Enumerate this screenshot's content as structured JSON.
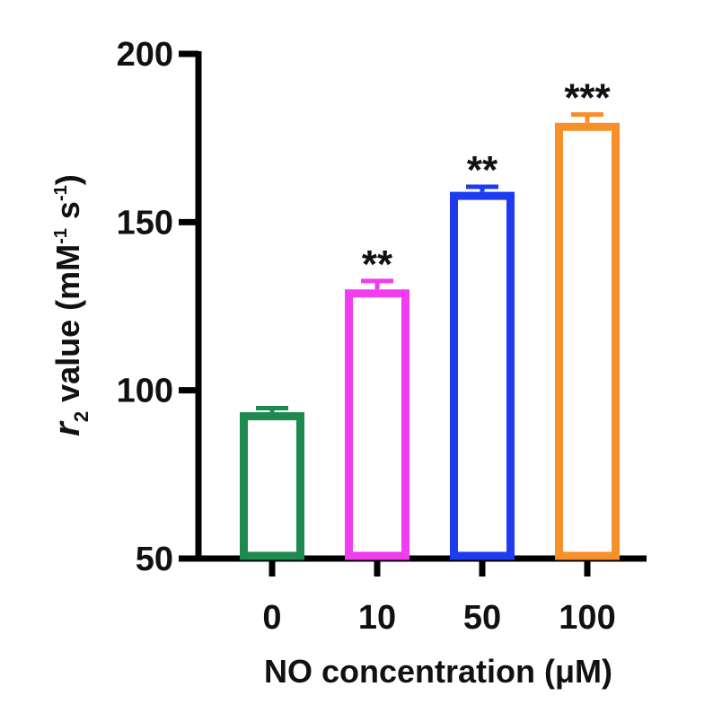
{
  "chart_data": {
    "type": "bar",
    "categories": [
      "0",
      "10",
      "50",
      "100"
    ],
    "values": [
      93.5,
      130,
      159,
      179.5
    ],
    "errors": [
      1.2,
      2.5,
      1.5,
      2.5
    ],
    "significance": [
      "",
      "**",
      "**",
      "***"
    ],
    "colors": [
      "#1f8a50",
      "#f23cf0",
      "#1d3cf0",
      "#f7902a"
    ],
    "xlabel": "NO concentration (μM)",
    "ylabel": {
      "symbol": "r",
      "symbol_sub": "2",
      "text": " value (mM",
      "sup1": "-1",
      "mid": " s",
      "sup2": "-1",
      "end": ")"
    },
    "ylim": [
      50,
      200
    ],
    "yticks": [
      50,
      100,
      150,
      200
    ],
    "grid": false,
    "legend": "none",
    "bar_style": "hollow"
  }
}
